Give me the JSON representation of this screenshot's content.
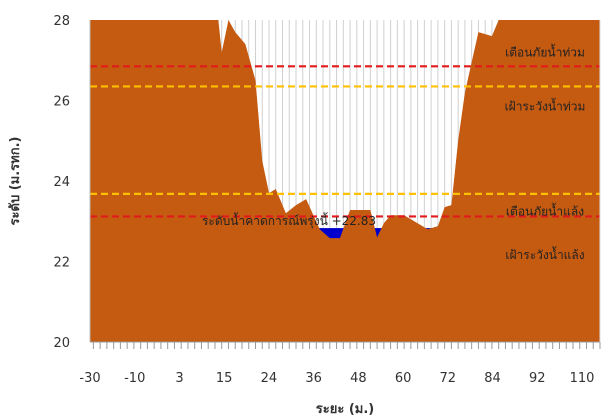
{
  "chart_data": {
    "type": "area",
    "xlabel": "ระยะ (ม.)",
    "ylabel": "ระดับ (ม.รทก.)",
    "ylim": [
      20,
      28
    ],
    "xlim": [
      -33,
      118
    ],
    "y_ticks": [
      "20",
      "22",
      "24",
      "26",
      "28"
    ],
    "x_tick_labels": [
      "-30",
      "-10",
      "3",
      "15",
      "24",
      "36",
      "48",
      "60",
      "72",
      "84",
      "92",
      "110"
    ],
    "grid": "vertical",
    "colors": {
      "ground": "#c55a11",
      "water": "#0000cc",
      "warning_line": "#e31a1c",
      "watch_line": "#ffc000",
      "grid": "#d0d0d0"
    },
    "ground_profile": {
      "x": [
        -33,
        5,
        6,
        8,
        10,
        13,
        16,
        18,
        20,
        22,
        25,
        28,
        31,
        35,
        38,
        41,
        44,
        48,
        50,
        52,
        54,
        56,
        60,
        64,
        67,
        70,
        72,
        74,
        76,
        78,
        82,
        86,
        88,
        118
      ],
      "y": [
        28,
        28,
        27.2,
        28,
        27.7,
        27.4,
        26.5,
        24.5,
        23.7,
        23.8,
        23.2,
        23.4,
        23.55,
        22.8,
        22.58,
        22.58,
        23.28,
        23.28,
        23.28,
        22.6,
        22.95,
        23.15,
        23.15,
        22.95,
        22.8,
        22.88,
        23.35,
        23.4,
        25,
        26.2,
        27.7,
        27.6,
        28,
        28
      ]
    },
    "water_level": 22.83,
    "reference_lines": [
      {
        "label": "เตือนภัยน้ำท่วม",
        "value": 26.85,
        "style": "warning"
      },
      {
        "label": "เฝ้าระวังน้ำท่วม",
        "value": 26.35,
        "style": "watch"
      },
      {
        "label": "เฝ้าระวังน้ำแล้ง",
        "value": 23.68,
        "style": "watch"
      },
      {
        "label": "เตือนภัยน้ำแล้ง",
        "value": 23.12,
        "style": "warning"
      }
    ],
    "water_annotation": "ระดับน้ำคาดการณ์พรุ่งนี้ +22.83"
  }
}
